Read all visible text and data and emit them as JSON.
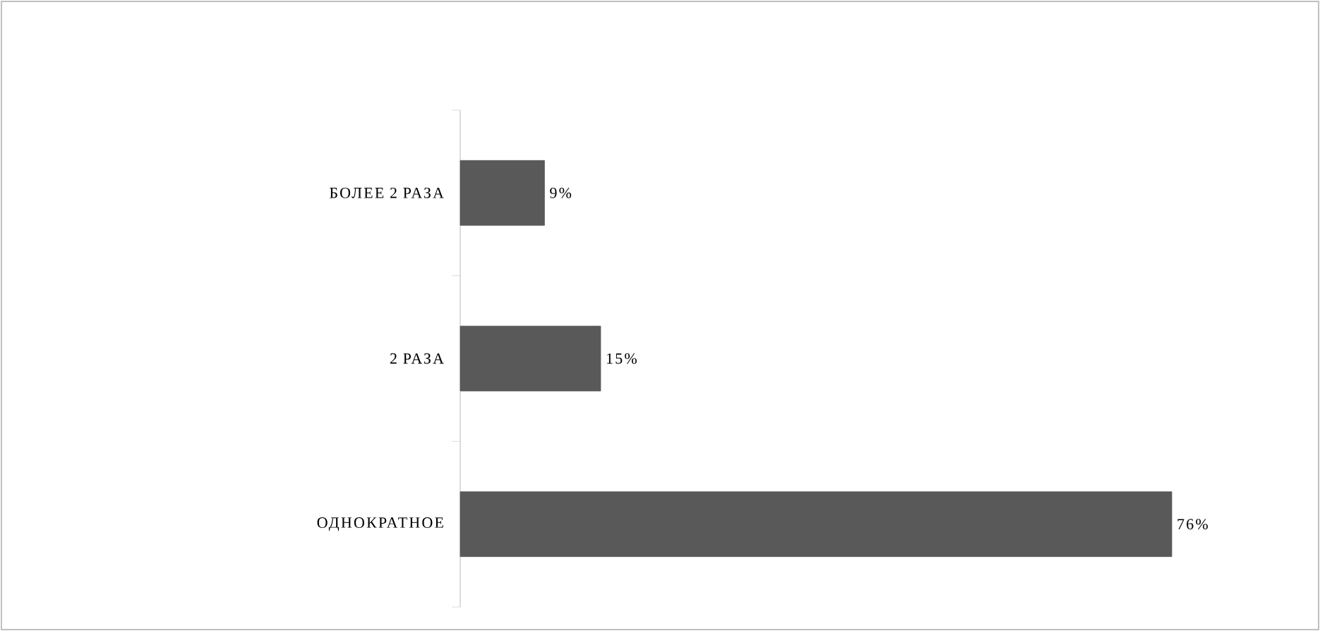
{
  "chart_data": {
    "type": "bar",
    "orientation": "horizontal",
    "categories": [
      "БОЛЕЕ 2 РАЗА",
      "2 РАЗА",
      "ОДНОКРАТНОЕ"
    ],
    "values": [
      9,
      15,
      76
    ],
    "value_labels": [
      "9%",
      "15%",
      "76%"
    ],
    "color": "#595959"
  }
}
